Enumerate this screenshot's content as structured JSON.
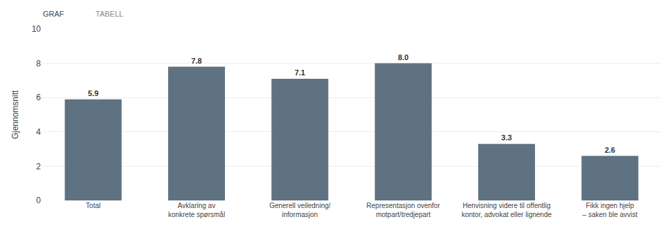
{
  "chart_data": {
    "type": "bar",
    "categories": [
      "Total",
      "Avklaring av konkrete spørsmål",
      "Generell veiledning/ informasjon",
      "Representasjon ovenfor\nmotpart/tredjepart",
      "Henvisning videre til offentlig\nkontor, advokat eller lignende",
      "Fikk ingen hjelp – saken ble avvist"
    ],
    "values": [
      5.9,
      7.8,
      7.1,
      8.0,
      3.3,
      2.6
    ],
    "value_labels": [
      "5.9",
      "7.8",
      "7.1",
      "8.0",
      "3.3",
      "2.6"
    ],
    "data_labels": true,
    "color": "#5f7282",
    "ylabel": "Gjennomsnitt",
    "ylim": [
      0,
      10
    ],
    "yticks": [
      0,
      2,
      4,
      6,
      8,
      10
    ],
    "grid": true,
    "annotations": [
      "GRAF",
      "TABELL"
    ]
  }
}
